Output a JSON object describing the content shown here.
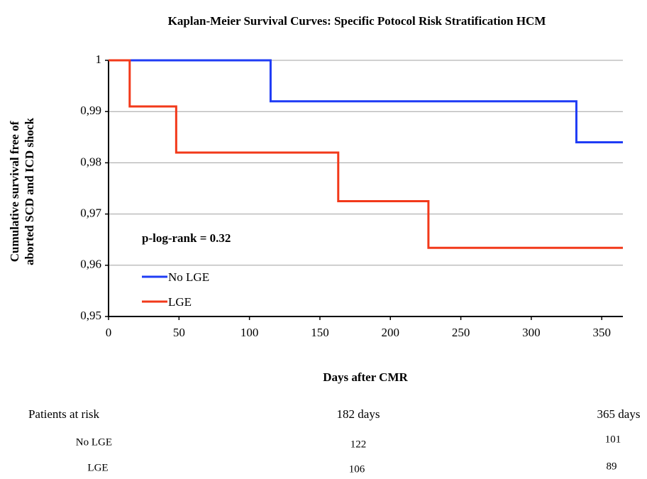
{
  "chart_data": {
    "type": "step",
    "step": "post",
    "title": "Kaplan-Meier Survival Curves: Specific Potocol Risk Stratification HCM",
    "xlabel": "Days after CMR",
    "ylabel": [
      "Cumulative survival free of",
      "aborted SCD and ICD shock"
    ],
    "annotation": "p-log-rank = 0.32",
    "xlim": [
      0,
      365
    ],
    "xticks": [
      0,
      50,
      100,
      150,
      200,
      250,
      300,
      350
    ],
    "ylim": [
      0.95,
      1
    ],
    "yticks": [
      {
        "value": 0.95,
        "label": "0,95"
      },
      {
        "value": 0.96,
        "label": "0,96"
      },
      {
        "value": 0.97,
        "label": "0,97"
      },
      {
        "value": 0.98,
        "label": "0,98"
      },
      {
        "value": 0.99,
        "label": "0,99"
      },
      1
    ],
    "grid": true,
    "legend": "left",
    "series": [
      {
        "name": "No LGE",
        "color": "#1f3cf5",
        "x": [
          0,
          115,
          332,
          365
        ],
        "values": [
          1,
          0.992,
          0.984,
          0.984
        ]
      },
      {
        "name": "LGE",
        "color": "#f2391a",
        "x": [
          0,
          15,
          48,
          163,
          227,
          365
        ],
        "values": [
          1,
          0.991,
          0.982,
          0.9725,
          0.9634,
          0.9634
        ]
      }
    ],
    "risk_table": {
      "header": [
        "Patients at risk",
        "182 days",
        "365 days"
      ],
      "rows": [
        [
          "No LGE",
          "122",
          "101"
        ],
        [
          "LGE",
          "106",
          "89"
        ]
      ]
    }
  }
}
